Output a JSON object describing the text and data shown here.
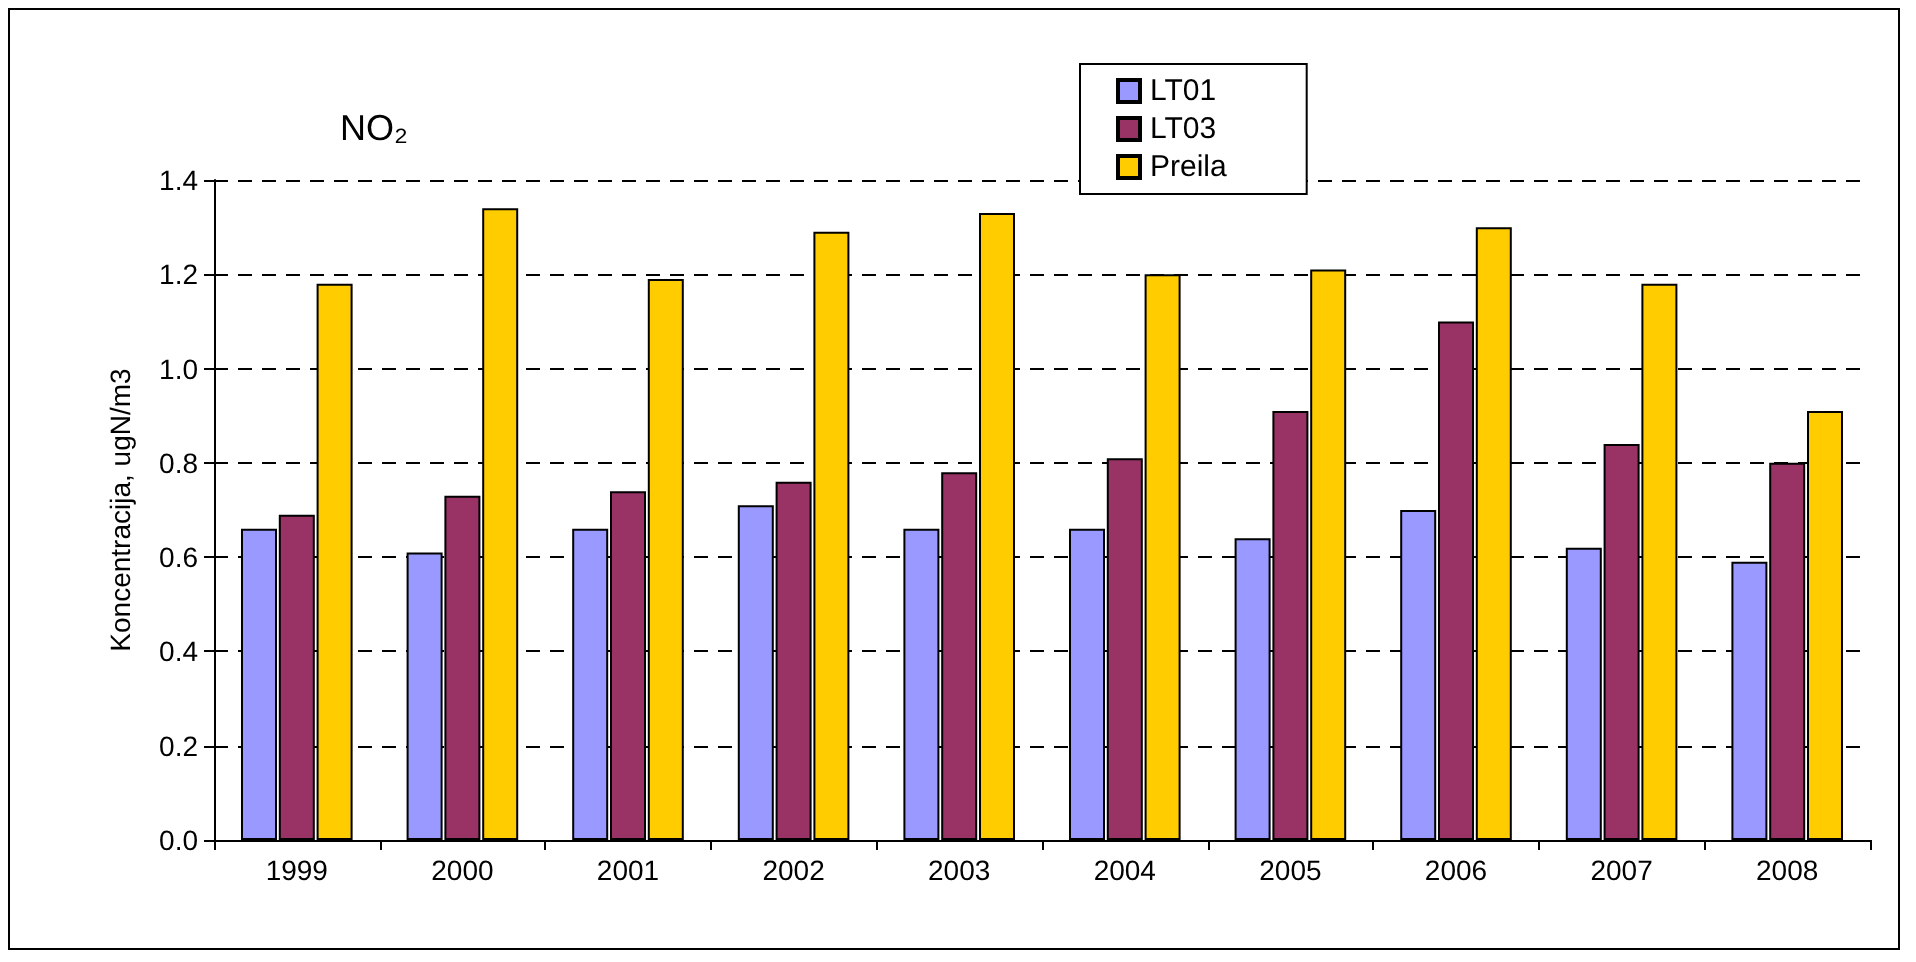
{
  "chart_data": {
    "type": "bar",
    "title": "NO₂",
    "ylabel": "Koncentracija, ugN/m3",
    "categories": [
      "1999",
      "2000",
      "2001",
      "2002",
      "2003",
      "2004",
      "2005",
      "2006",
      "2007",
      "2008"
    ],
    "series": [
      {
        "name": "LT01",
        "color": "#9999ff",
        "values": [
          0.66,
          0.61,
          0.66,
          0.71,
          0.66,
          0.66,
          0.64,
          0.7,
          0.62,
          0.59
        ]
      },
      {
        "name": "LT03",
        "color": "#993366",
        "values": [
          0.69,
          0.73,
          0.74,
          0.76,
          0.78,
          0.81,
          0.91,
          1.1,
          0.84,
          0.8
        ]
      },
      {
        "name": "Preila",
        "color": "#ffcc00",
        "values": [
          1.18,
          1.34,
          1.19,
          1.29,
          1.33,
          1.2,
          1.21,
          1.3,
          1.18,
          0.91
        ]
      }
    ],
    "ylim": [
      0,
      1.4
    ],
    "yticks": [
      {
        "value": 0,
        "label": "0.0"
      },
      {
        "value": 0.2,
        "label": "0.2"
      },
      {
        "value": 0.4,
        "label": "0.4"
      },
      {
        "value": 0.6,
        "label": "0.6"
      },
      {
        "value": 0.8,
        "label": "0.8"
      },
      {
        "value": 1.0,
        "label": "1.0"
      },
      {
        "value": 1.2,
        "label": "1.2"
      },
      {
        "value": 1.4,
        "label": "1.4"
      }
    ],
    "grid": "y",
    "legend": "top"
  }
}
